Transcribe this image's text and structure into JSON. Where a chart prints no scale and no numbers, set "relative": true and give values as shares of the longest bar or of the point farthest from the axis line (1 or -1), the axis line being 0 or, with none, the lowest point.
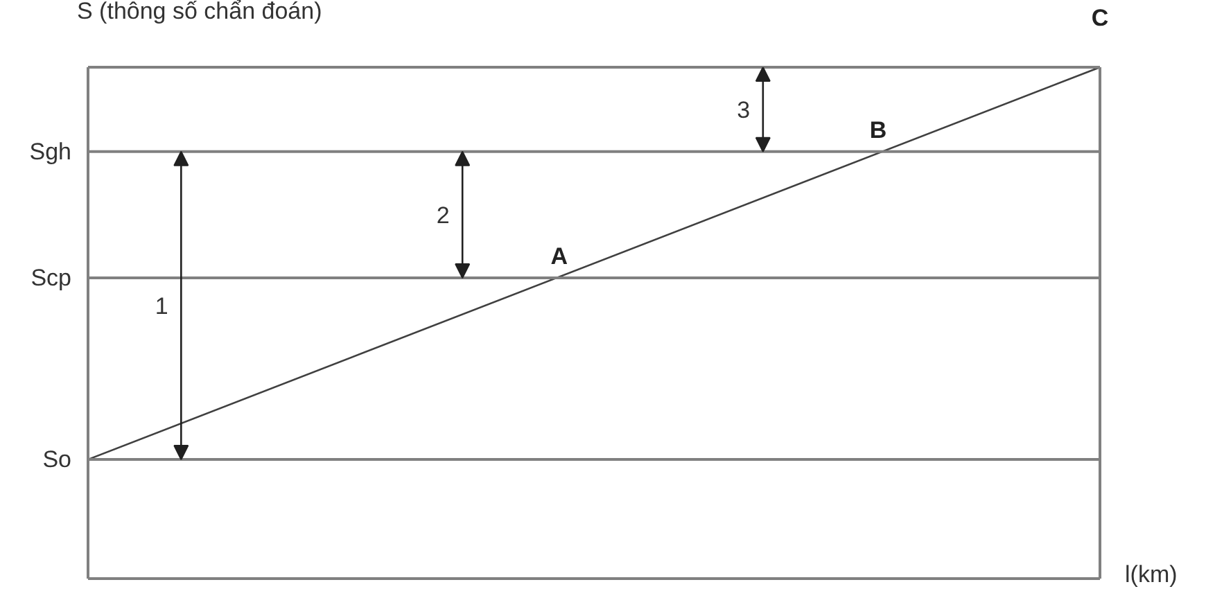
{
  "chart_data": {
    "type": "line",
    "relative": true,
    "xlabel": "l(km)",
    "ylabel": "S (thông số chẩn đoán)",
    "categories": [
      null,
      null
    ],
    "series": [
      {
        "color": "#404040",
        "values": [
          0.233,
          1
        ]
      }
    ],
    "line_style": "solid",
    "ref_lines": [
      {
        "axis": "y",
        "value": 0.233,
        "label": "So",
        "color": "#808080"
      },
      {
        "axis": "y",
        "value": 0.588,
        "label": "Scp",
        "color": "#808080"
      },
      {
        "axis": "y",
        "value": 0.835,
        "label": "Sgh",
        "color": "#808080"
      }
    ],
    "annotations": [
      "1",
      "2",
      "3",
      {
        "text": "A",
        "y": 0.588
      },
      {
        "text": "B",
        "y": 0.835
      },
      {
        "text": "C",
        "y": 1
      }
    ]
  }
}
